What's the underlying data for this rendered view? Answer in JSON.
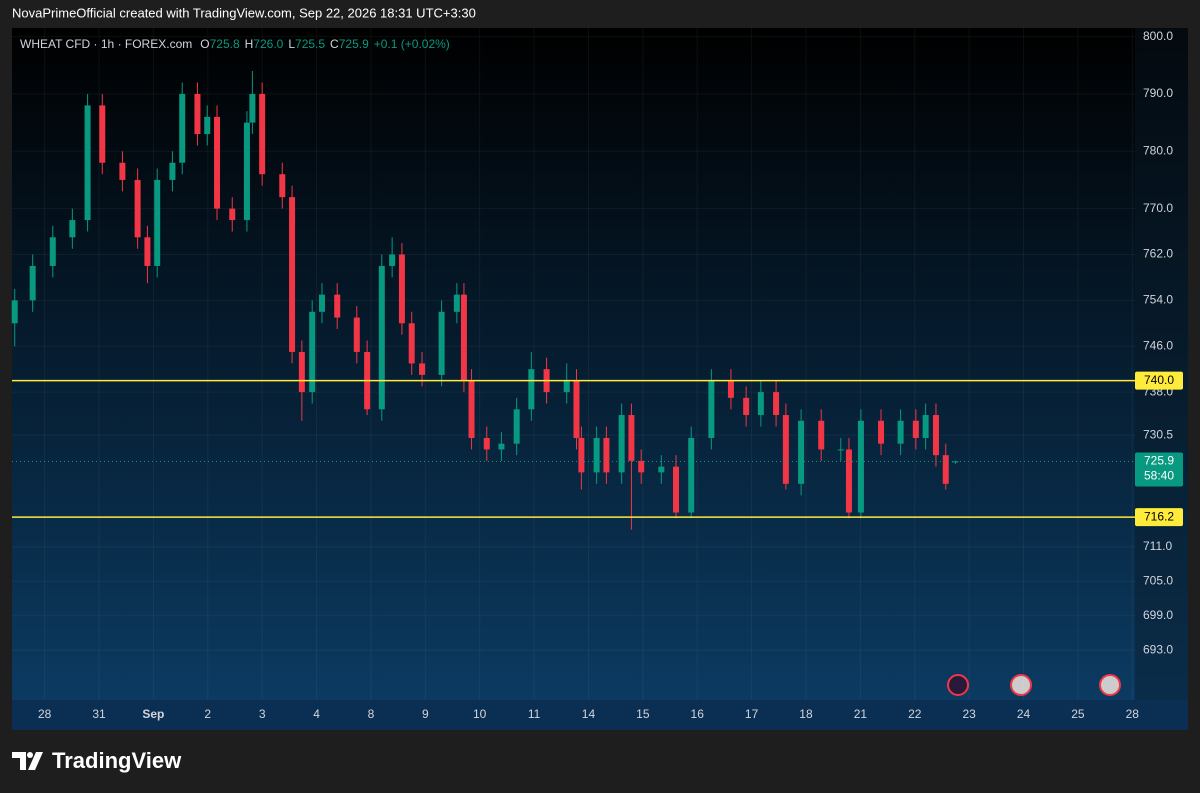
{
  "title": "NovaPrimeOfficial created with TradingView.com, Sep 22, 2026 18:31 UTC+3:30",
  "brand": "TradingView",
  "chart_data": {
    "type": "candlestick",
    "legend": {
      "symbol": "WHEAT CFD · 1h · FOREX.com",
      "fields": [
        {
          "key": "O",
          "value": "725.8"
        },
        {
          "key": "H",
          "value": "726.0"
        },
        {
          "key": "L",
          "value": "725.5"
        },
        {
          "key": "C",
          "value": "725.9"
        }
      ],
      "change": "+0.1 (+0.02%)"
    },
    "up_color": "#089981",
    "down_color": "#f23645",
    "grid": true,
    "xlim": [
      -0.6,
      20.05
    ],
    "ylim": [
      684.3,
      801.5
    ],
    "xticks": [
      {
        "value": 0,
        "label": "28"
      },
      {
        "value": 1,
        "label": "31"
      },
      {
        "value": 2,
        "label": "Sep"
      },
      {
        "value": 3,
        "label": "2"
      },
      {
        "value": 4,
        "label": "3"
      },
      {
        "value": 5,
        "label": "4"
      },
      {
        "value": 6,
        "label": "8"
      },
      {
        "value": 7,
        "label": "9"
      },
      {
        "value": 8,
        "label": "10"
      },
      {
        "value": 9,
        "label": "11"
      },
      {
        "value": 10,
        "label": "14"
      },
      {
        "value": 11,
        "label": "15"
      },
      {
        "value": 12,
        "label": "16"
      },
      {
        "value": 13,
        "label": "17"
      },
      {
        "value": 14,
        "label": "18"
      },
      {
        "value": 15,
        "label": "21"
      },
      {
        "value": 16,
        "label": "22"
      },
      {
        "value": 17,
        "label": "23"
      },
      {
        "value": 18,
        "label": "24"
      },
      {
        "value": 19,
        "label": "25"
      },
      {
        "value": 20,
        "label": "28"
      }
    ],
    "yticks": [
      {
        "value": 800,
        "label": "800.0"
      },
      {
        "value": 790,
        "label": "790.0"
      },
      {
        "value": 780,
        "label": "780.0"
      },
      {
        "value": 770,
        "label": "770.0"
      },
      {
        "value": 762,
        "label": "762.0"
      },
      {
        "value": 754,
        "label": "754.0"
      },
      {
        "value": 746,
        "label": "746.0"
      },
      {
        "value": 738,
        "label": "738.0"
      },
      730.5,
      {
        "value": 711,
        "label": "711.0"
      },
      {
        "value": 705,
        "label": "705.0"
      },
      {
        "value": 699,
        "label": "699.0"
      },
      {
        "value": 693,
        "label": "693.0"
      }
    ],
    "hlines": [
      {
        "value": 740,
        "label": "740.0",
        "color": "#ffeb3b"
      },
      {
        "value": 716.2,
        "label": "716.2",
        "color": "#ffeb3b"
      }
    ],
    "last_price": {
      "value": 725.9,
      "countdown": "58:40",
      "color": "#089981"
    },
    "x": [
      -0.55,
      -0.22,
      0.15,
      0.51,
      0.79,
      1.06,
      1.43,
      1.71,
      1.89,
      2.07,
      2.35,
      2.53,
      2.81,
      2.99,
      3.17,
      3.45,
      3.72,
      3.82,
      4.0,
      4.37,
      4.55,
      4.73,
      4.92,
      5.1,
      5.38,
      5.74,
      5.93,
      6.2,
      6.39,
      6.57,
      6.75,
      6.94,
      7.3,
      7.58,
      7.71,
      7.85,
      8.13,
      8.4,
      8.68,
      8.95,
      9.23,
      9.6,
      9.78,
      9.87,
      10.15,
      10.33,
      10.61,
      10.79,
      10.97,
      11.34,
      11.61,
      11.89,
      12.26,
      12.62,
      12.9,
      13.17,
      13.45,
      13.63,
      13.91,
      14.28,
      14.64,
      14.79,
      15.01,
      15.38,
      15.74,
      16.02,
      16.2,
      16.39,
      16.57,
      16.75
    ],
    "open": [
      750,
      754,
      760,
      765,
      768,
      788,
      778,
      775,
      765,
      760,
      775,
      778,
      790,
      783,
      786,
      770,
      768,
      785,
      790,
      776,
      772,
      745,
      738,
      752,
      755,
      751,
      745,
      735,
      760,
      762,
      750,
      743,
      741,
      752,
      755,
      740,
      730,
      728,
      729,
      735,
      742,
      738,
      740,
      730,
      724,
      730,
      724,
      734,
      726,
      724,
      725,
      717,
      730,
      740,
      737,
      734,
      738,
      734,
      722,
      733,
      728,
      728,
      717,
      733,
      729,
      733,
      730,
      734,
      727,
      725.8
    ],
    "high": [
      756,
      762,
      767,
      770,
      790,
      790,
      780,
      777,
      767,
      777,
      780,
      792,
      792,
      788,
      788,
      772,
      787,
      794,
      792,
      778,
      774,
      747,
      754,
      757,
      757,
      753,
      747,
      762,
      765,
      764,
      752,
      745,
      754,
      757,
      757,
      742,
      732,
      731,
      737,
      745,
      744,
      743,
      742,
      732,
      732,
      732,
      736,
      736,
      728,
      727,
      727,
      732,
      742,
      742,
      739,
      740,
      740,
      736,
      735,
      735,
      730,
      730,
      735,
      735,
      735,
      735,
      736,
      736,
      729,
      726.0
    ],
    "low": [
      746,
      752,
      758,
      763,
      766,
      776,
      773,
      763,
      757,
      758,
      773,
      776,
      781,
      781,
      768,
      766,
      766,
      783,
      774,
      770,
      743,
      733,
      736,
      750,
      749,
      743,
      734,
      733,
      758,
      748,
      741,
      739,
      739,
      750,
      738,
      728,
      726,
      726,
      727,
      733,
      736,
      736,
      728,
      721,
      722,
      722,
      722,
      714,
      722,
      722,
      716,
      716,
      728,
      735,
      732,
      732,
      732,
      721,
      720,
      726,
      726,
      716,
      716,
      727,
      727,
      728,
      728,
      725,
      721,
      725.5
    ],
    "close": [
      754,
      760,
      765,
      768,
      788,
      778,
      775,
      765,
      760,
      775,
      778,
      790,
      783,
      786,
      770,
      768,
      785,
      790,
      776,
      772,
      745,
      738,
      752,
      755,
      751,
      745,
      735,
      760,
      762,
      750,
      743,
      741,
      752,
      755,
      740,
      730,
      728,
      729,
      735,
      742,
      738,
      740,
      730,
      724,
      730,
      724,
      734,
      726,
      724,
      725,
      717,
      730,
      740,
      737,
      734,
      738,
      734,
      722,
      733,
      728,
      728,
      717,
      733,
      729,
      733,
      730,
      734,
      727,
      722,
      725.9
    ]
  }
}
